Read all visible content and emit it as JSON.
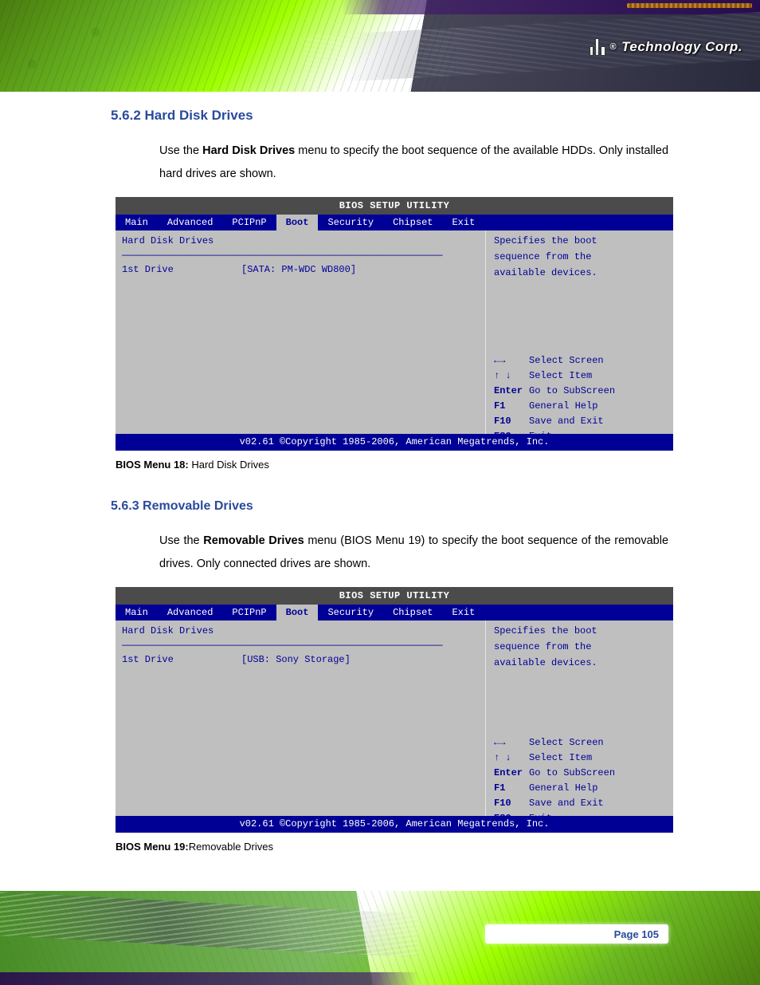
{
  "header": {
    "logo_text": "Technology Corp."
  },
  "page_title": "5.6.2 Hard Disk Drives",
  "intro1": {
    "pre": "Use the ",
    "bold": "Hard Disk Drives",
    "post": " menu to specify the boot sequence of the available HDDs. Only installed hard drives are shown."
  },
  "bios1": {
    "title": "BIOS SETUP UTILITY",
    "tabs": [
      "Main",
      "Advanced",
      "PCIPnP",
      "Boot",
      "Security",
      "Chipset",
      "Exit"
    ],
    "active_tab": 3,
    "left": {
      "section": "Hard Disk Drives",
      "row_label": "1st Drive",
      "row_value": "[SATA: PM-WDC WD800]"
    },
    "right": {
      "help1": "Specifies the boot",
      "help2": "sequence from the",
      "help3": "available devices.",
      "keys": [
        {
          "k": "←→",
          "d": "Select Screen"
        },
        {
          "k": "↑ ↓",
          "d": "Select Item"
        },
        {
          "k": "Enter",
          "d": "Go to SubScreen"
        },
        {
          "k": "F1",
          "d": "General Help"
        },
        {
          "k": "F10",
          "d": "Save and Exit"
        },
        {
          "k": "ESC",
          "d": "Exit"
        }
      ]
    },
    "footer": "v02.61 ©Copyright 1985-2006, American Megatrends, Inc."
  },
  "caption1": {
    "lead": "BIOS Menu 18:",
    "rest": " Hard Disk Drives"
  },
  "section_heading": "5.6.3 Removable Drives",
  "intro2": {
    "pre": "Use the ",
    "bold": "Removable Drives",
    "post": " menu (BIOS Menu 19) to specify the boot sequence of the removable drives. Only connected drives are shown."
  },
  "bios2": {
    "title": "BIOS SETUP UTILITY",
    "tabs": [
      "Main",
      "Advanced",
      "PCIPnP",
      "Boot",
      "Security",
      "Chipset",
      "Exit"
    ],
    "active_tab": 3,
    "left": {
      "section": "Hard Disk Drives",
      "row_label": "1st Drive",
      "row_value": "[USB: Sony Storage]"
    },
    "right": {
      "help1": "Specifies the boot",
      "help2": "sequence from the",
      "help3": "available devices.",
      "keys": [
        {
          "k": "←→",
          "d": "Select Screen"
        },
        {
          "k": "↑ ↓",
          "d": "Select Item"
        },
        {
          "k": "Enter",
          "d": "Go to SubScreen"
        },
        {
          "k": "F1",
          "d": "General Help"
        },
        {
          "k": "F10",
          "d": "Save and Exit"
        },
        {
          "k": "ESC",
          "d": "Exit"
        }
      ]
    },
    "footer": "v02.61 ©Copyright 1985-2006, American Megatrends, Inc."
  },
  "caption2": {
    "lead": "BIOS Menu 19:",
    "rest": "Removable Drives"
  },
  "page_number": "Page 105",
  "styling": {
    "colors": {
      "bios_tab_bg": "#000096",
      "bios_body_bg": "#bfbfbf",
      "bios_title_bg": "#4b4b4b",
      "bios_text": "#000096",
      "heading": "#2a4a9c",
      "deco_green_dark": "#4a7c10",
      "deco_green_light": "#9fff00"
    },
    "fonts": {
      "body": "Arial 14.5px",
      "mono": "Courier New 12px",
      "heading": "Arial bold 17px"
    }
  }
}
